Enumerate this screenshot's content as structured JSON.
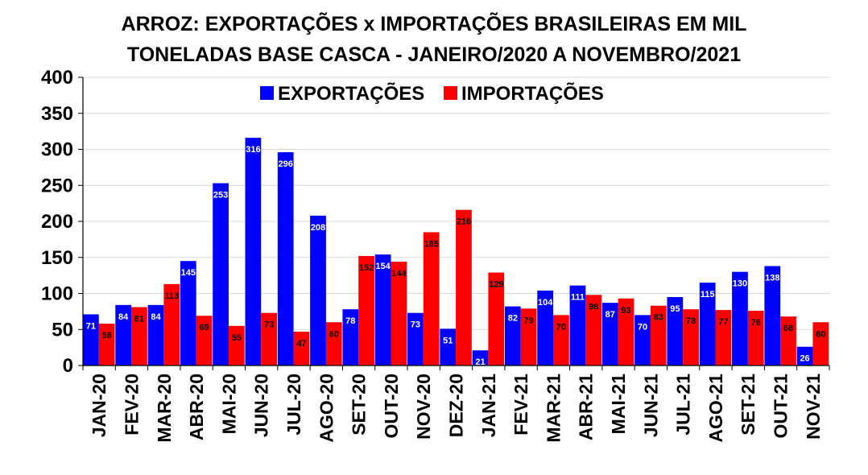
{
  "chart_data": {
    "type": "bar",
    "title_lines": [
      "ARROZ: EXPORTAÇÕES x IMPORTAÇÕES BRASILEIRAS EM MIL",
      "TONELADAS BASE CASCA - JANEIRO/2020 A NOVEMBRO/2021"
    ],
    "categories": [
      "JAN-20",
      "FEV-20",
      "MAR-20",
      "ABR-20",
      "MAI-20",
      "JUN-20",
      "JUL-20",
      "AGO-20",
      "SET-20",
      "OUT-20",
      "NOV-20",
      "DEZ-20",
      "JAN-21",
      "FEV-21",
      "MAR-21",
      "ABR-21",
      "MAI-21",
      "JUN-21",
      "JUL-21",
      "AGO-21",
      "SET-21",
      "OUT-21",
      "NOV-21"
    ],
    "series": [
      {
        "name": "EXPORTAÇÕES",
        "color": "#0000ff",
        "values": [
          71,
          84,
          84,
          145,
          253,
          316,
          296,
          208,
          78,
          154,
          73,
          51,
          21,
          82,
          104,
          111,
          87,
          70,
          95,
          115,
          130,
          138,
          26
        ]
      },
      {
        "name": "IMPORTAÇÕES",
        "color": "#ff0000",
        "values": [
          58,
          81,
          113,
          69,
          55,
          73,
          47,
          60,
          152,
          144,
          185,
          216,
          129,
          79,
          70,
          98,
          93,
          83,
          78,
          77,
          76,
          68,
          60
        ]
      }
    ],
    "ylim": [
      0,
      400
    ],
    "yticks": [
      0,
      50,
      100,
      150,
      200,
      250,
      300,
      350,
      400
    ],
    "legend_position": "top-center",
    "grid": true
  }
}
